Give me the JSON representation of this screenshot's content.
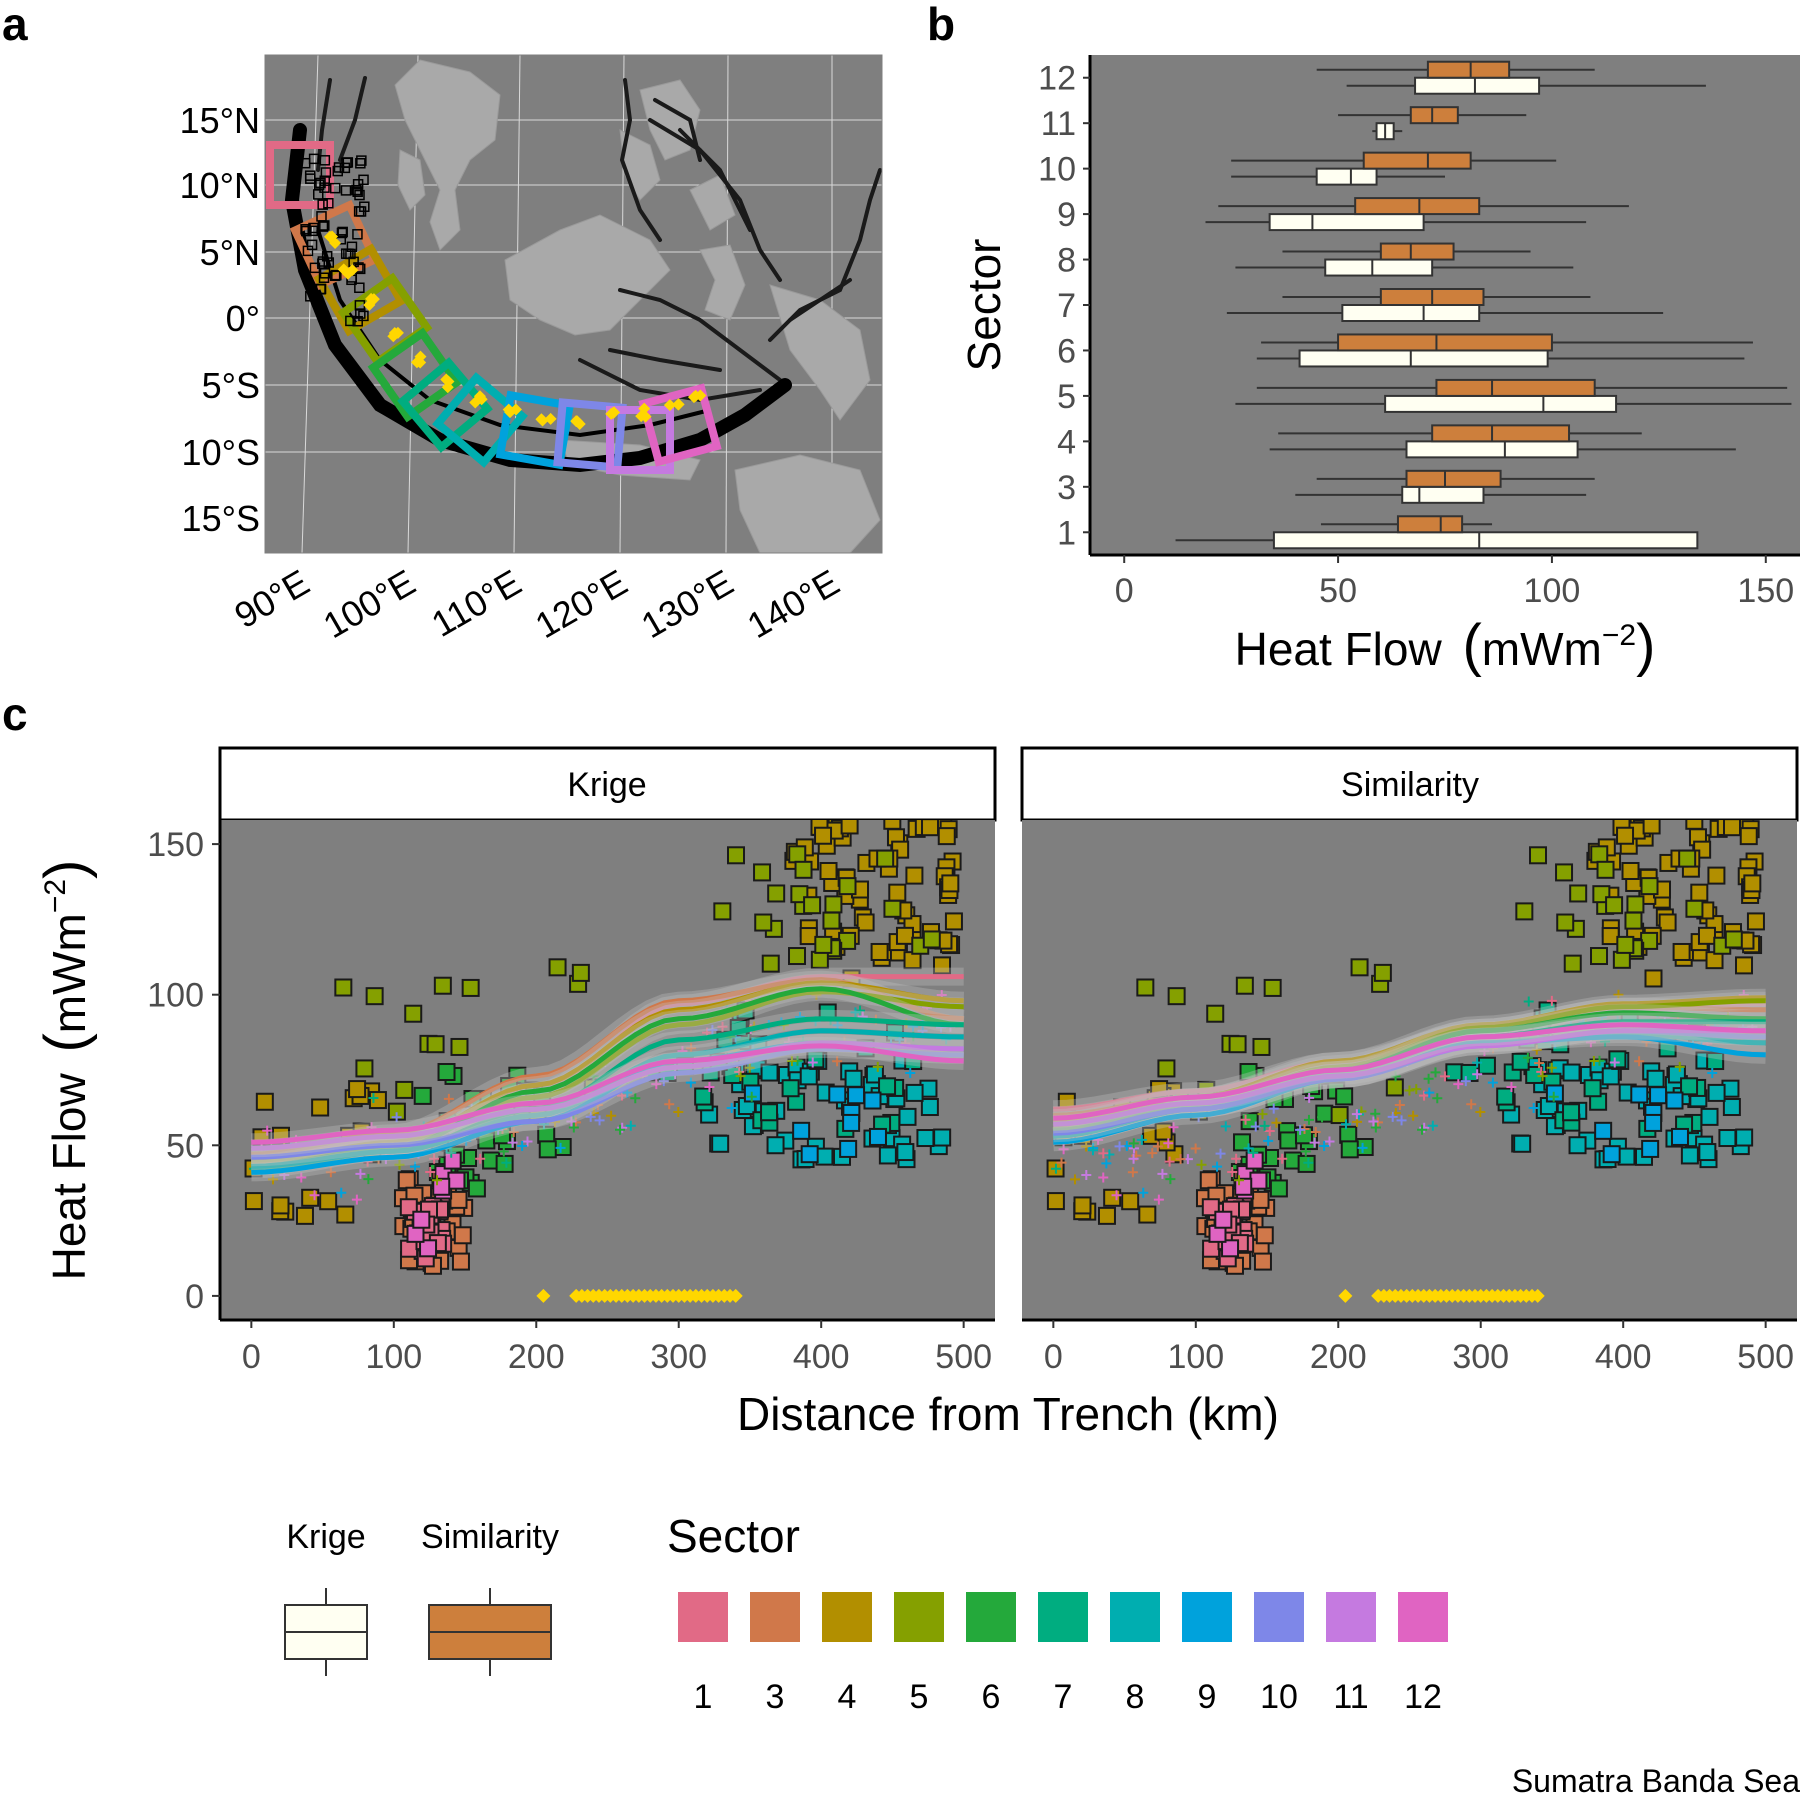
{
  "figure": {
    "panel_labels": [
      "a",
      "b",
      "c"
    ],
    "footer_text": "Sumatra Banda Sea"
  },
  "colors": {
    "panel_bg": "#7f7f7f",
    "krige_fill": "#fffff2",
    "similarity_fill": "#cd7f3c",
    "highlight": "#ffd700",
    "sector_palette": {
      "1": "#e16a86",
      "3": "#d0784a",
      "4": "#b28f00",
      "5": "#85a000",
      "6": "#24a93b",
      "7": "#00ad80",
      "8": "#00aeb0",
      "9": "#00a2dc",
      "10": "#7e87e8",
      "11": "#c57ae0",
      "12": "#e064c2"
    }
  },
  "map": {
    "lat_labels": [
      "15°N",
      "10°N",
      "5°N",
      "0°",
      "5°S",
      "10°S",
      "15°S"
    ],
    "lon_labels": [
      "90°E",
      "100°E",
      "110°E",
      "120°E",
      "130°E",
      "140°E"
    ],
    "sector_order": [
      "1",
      "3",
      "4",
      "5",
      "6",
      "7",
      "8",
      "9",
      "10",
      "11",
      "12"
    ]
  },
  "chart_data": [
    {
      "id": "b",
      "type": "box",
      "xlabel": "Heat Flow",
      "xunit_base": "mWm",
      "xunit_exp": "−2",
      "ylabel": "Sector",
      "xlim": [
        -8,
        158
      ],
      "xticks": [
        0,
        50,
        100,
        150
      ],
      "categories": [
        "1",
        "3",
        "4",
        "5",
        "6",
        "7",
        "8",
        "9",
        "10",
        "11",
        "12"
      ],
      "series": [
        {
          "name": "Krige",
          "boxes": [
            {
              "sector": "1",
              "min": 12,
              "q1": 35,
              "median": 83,
              "q3": 134,
              "max": 134
            },
            {
              "sector": "3",
              "min": 40,
              "q1": 65,
              "median": 69,
              "q3": 84,
              "max": 108
            },
            {
              "sector": "4",
              "min": 34,
              "q1": 66,
              "median": 89,
              "q3": 106,
              "max": 143
            },
            {
              "sector": "5",
              "min": 26,
              "q1": 61,
              "median": 98,
              "q3": 115,
              "max": 156
            },
            {
              "sector": "6",
              "min": 31,
              "q1": 41,
              "median": 67,
              "q3": 99,
              "max": 145
            },
            {
              "sector": "7",
              "min": 24,
              "q1": 51,
              "median": 70,
              "q3": 83,
              "max": 126
            },
            {
              "sector": "8",
              "min": 26,
              "q1": 47,
              "median": 58,
              "q3": 72,
              "max": 105
            },
            {
              "sector": "9",
              "min": 19,
              "q1": 34,
              "median": 44,
              "q3": 70,
              "max": 108
            },
            {
              "sector": "10",
              "min": 25,
              "q1": 45,
              "median": 53,
              "q3": 59,
              "max": 75
            },
            {
              "sector": "11",
              "min": 58,
              "q1": 59,
              "median": 61,
              "q3": 63,
              "max": 65
            },
            {
              "sector": "12",
              "min": 52,
              "q1": 68,
              "median": 82,
              "q3": 97,
              "max": 136
            }
          ]
        },
        {
          "name": "Similarity",
          "boxes": [
            {
              "sector": "1",
              "min": 46,
              "q1": 64,
              "median": 74,
              "q3": 79,
              "max": 86
            },
            {
              "sector": "3",
              "min": 45,
              "q1": 66,
              "median": 75,
              "q3": 88,
              "max": 110
            },
            {
              "sector": "4",
              "min": 36,
              "q1": 72,
              "median": 86,
              "q3": 104,
              "max": 121
            },
            {
              "sector": "5",
              "min": 31,
              "q1": 73,
              "median": 86,
              "q3": 110,
              "max": 155
            },
            {
              "sector": "6",
              "min": 32,
              "q1": 50,
              "median": 73,
              "q3": 100,
              "max": 147
            },
            {
              "sector": "7",
              "min": 37,
              "q1": 60,
              "median": 72,
              "q3": 84,
              "max": 109
            },
            {
              "sector": "8",
              "min": 37,
              "q1": 60,
              "median": 67,
              "q3": 77,
              "max": 95
            },
            {
              "sector": "9",
              "min": 22,
              "q1": 54,
              "median": 69,
              "q3": 83,
              "max": 118
            },
            {
              "sector": "10",
              "min": 25,
              "q1": 56,
              "median": 71,
              "q3": 81,
              "max": 101
            },
            {
              "sector": "11",
              "min": 50,
              "q1": 67,
              "median": 72,
              "q3": 78,
              "max": 94
            },
            {
              "sector": "12",
              "min": 45,
              "q1": 71,
              "median": 81,
              "q3": 90,
              "max": 110
            }
          ]
        }
      ]
    },
    {
      "id": "c",
      "type": "scatter",
      "facets": [
        "Krige",
        "Similarity"
      ],
      "xlabel": "Distance from Trench (km)",
      "ylabel": "Heat Flow",
      "yunit_base": "mWm",
      "yunit_exp": "−2",
      "xlim": [
        -22,
        522
      ],
      "ylim": [
        -8,
        158
      ],
      "xticks": [
        0,
        100,
        200,
        300,
        400,
        500
      ],
      "yticks": [
        0,
        50,
        100,
        150
      ],
      "smooth_lines": {
        "x": [
          0,
          100,
          200,
          300,
          400,
          500
        ],
        "Krige": {
          "1": [
            46,
            52,
            68,
            97,
            106,
            106
          ],
          "3": [
            47,
            54,
            73,
            98,
            105,
            92
          ],
          "4": [
            44,
            51,
            70,
            95,
            104,
            98
          ],
          "5": [
            45,
            50,
            66,
            90,
            101,
            96
          ],
          "6": [
            43,
            49,
            68,
            92,
            102,
            90
          ],
          "7": [
            42,
            48,
            62,
            85,
            92,
            90
          ],
          "8": [
            43,
            48,
            60,
            80,
            88,
            86
          ],
          "9": [
            41,
            46,
            58,
            78,
            84,
            82
          ],
          "10": [
            46,
            50,
            58,
            74,
            82,
            80
          ],
          "11": [
            49,
            53,
            62,
            76,
            84,
            82
          ],
          "12": [
            51,
            55,
            64,
            78,
            83,
            78
          ]
        },
        "Similarity": {
          "1": [
            62,
            68,
            78,
            88,
            95,
            97
          ],
          "3": [
            60,
            66,
            77,
            89,
            96,
            95
          ],
          "4": [
            58,
            66,
            78,
            90,
            97,
            99
          ],
          "5": [
            56,
            64,
            76,
            89,
            96,
            98
          ],
          "6": [
            55,
            63,
            75,
            88,
            94,
            92
          ],
          "7": [
            53,
            62,
            74,
            86,
            91,
            91
          ],
          "8": [
            53,
            62,
            72,
            84,
            87,
            84
          ],
          "9": [
            51,
            60,
            72,
            84,
            86,
            80
          ],
          "10": [
            54,
            62,
            72,
            83,
            88,
            86
          ],
          "11": [
            57,
            64,
            73,
            83,
            88,
            88
          ],
          "12": [
            59,
            66,
            75,
            86,
            90,
            88
          ]
        }
      },
      "highlight_points": {
        "x_first": 205,
        "x_range": [
          228,
          340
        ],
        "y": 0
      }
    }
  ],
  "legend": {
    "box_labels": [
      "Krige",
      "Similarity"
    ],
    "sector_title": "Sector",
    "sector_labels": [
      "1",
      "3",
      "4",
      "5",
      "6",
      "7",
      "8",
      "9",
      "10",
      "11",
      "12"
    ]
  }
}
